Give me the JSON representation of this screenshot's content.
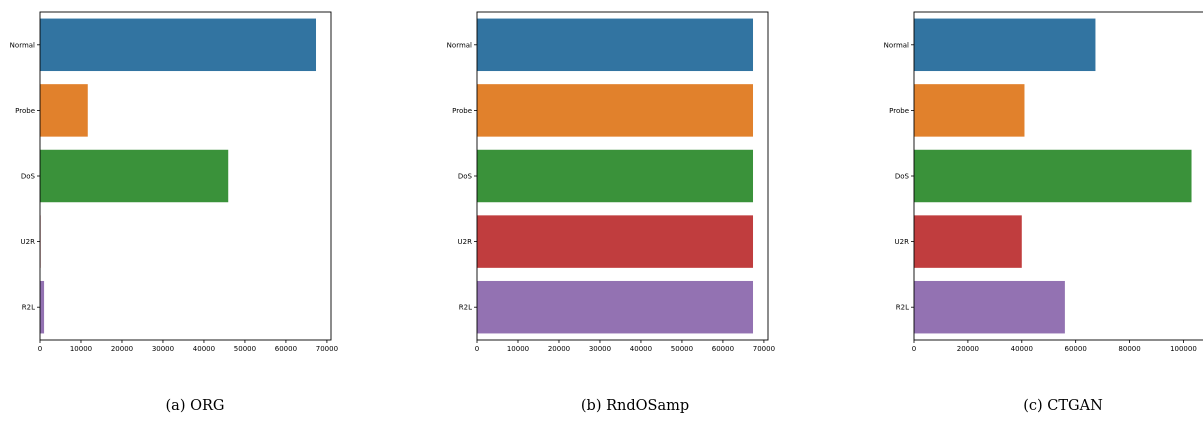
{
  "chart_data": [
    {
      "type": "bar",
      "orientation": "horizontal",
      "caption": "(a) ORG",
      "categories": [
        "Normal",
        "Probe",
        "DoS",
        "U2R",
        "R2L"
      ],
      "values": [
        67343,
        11656,
        45927,
        52,
        995
      ],
      "xlim": [
        0,
        71000
      ],
      "xticks": [
        0,
        10000,
        20000,
        30000,
        40000,
        50000,
        60000,
        70000
      ],
      "xlabel": "",
      "ylabel": "",
      "title": "",
      "grid": false
    },
    {
      "type": "bar",
      "orientation": "horizontal",
      "caption": "(b) RndOSamp",
      "categories": [
        "Normal",
        "Probe",
        "DoS",
        "U2R",
        "R2L"
      ],
      "values": [
        67343,
        67343,
        67343,
        67343,
        67343
      ],
      "xlim": [
        0,
        71000
      ],
      "xticks": [
        0,
        10000,
        20000,
        30000,
        40000,
        50000,
        60000,
        70000
      ],
      "xlabel": "",
      "ylabel": "",
      "title": "",
      "grid": false
    },
    {
      "type": "bar",
      "orientation": "horizontal",
      "caption": "(c) CTGAN",
      "categories": [
        "Normal",
        "Probe",
        "DoS",
        "U2R",
        "R2L"
      ],
      "values": [
        67343,
        41000,
        103000,
        40000,
        56000
      ],
      "xlim": [
        0,
        108000
      ],
      "xticks": [
        0,
        20000,
        40000,
        60000,
        80000,
        100000
      ],
      "xlabel": "",
      "ylabel": "",
      "title": "",
      "grid": false
    }
  ],
  "colors": [
    "#3274a1",
    "#e1812c",
    "#3a923a",
    "#c03d3e",
    "#9372b2"
  ]
}
